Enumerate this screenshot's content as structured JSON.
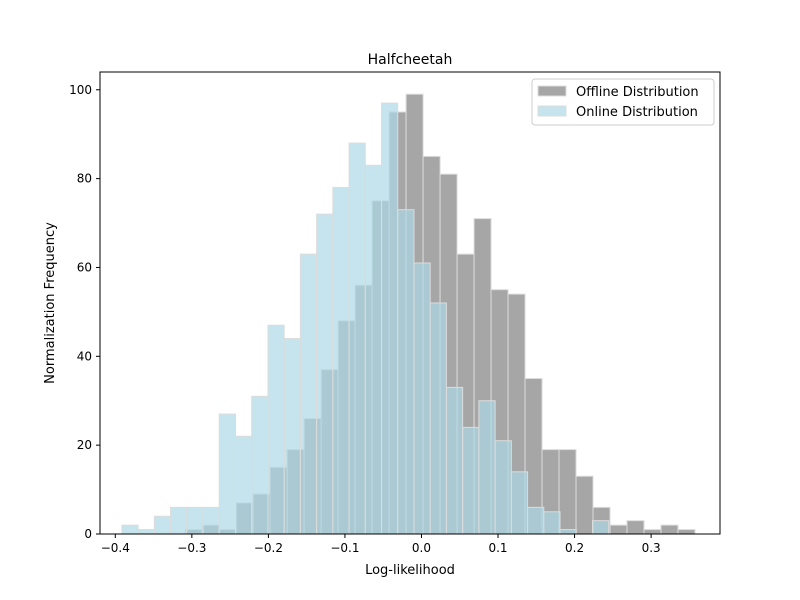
{
  "chart_data": {
    "type": "bar",
    "title": "Halfcheetah",
    "xlabel": "Log-likelihood",
    "ylabel": "Normalization Frequency",
    "xlim": [
      -0.42,
      0.39
    ],
    "ylim": [
      0,
      104
    ],
    "xticks": [
      -0.4,
      -0.3,
      -0.2,
      -0.1,
      0.0,
      0.1,
      0.2,
      0.3
    ],
    "xtick_labels": [
      "−0.4",
      "−0.3",
      "−0.2",
      "−0.1",
      "0.0",
      "0.1",
      "0.2",
      "0.3"
    ],
    "yticks": [
      0,
      20,
      40,
      60,
      80,
      100
    ],
    "ytick_labels": [
      "0",
      "20",
      "40",
      "60",
      "80",
      "100"
    ],
    "grid": false,
    "legend_position": "top-right",
    "series": [
      {
        "name": "Offline Distribution",
        "color": "#808080",
        "opacity": 0.7,
        "bin_start": -0.3087,
        "bin_width": 0.0222,
        "values": [
          1,
          2,
          1,
          7,
          9,
          15,
          19,
          26,
          37,
          48,
          56,
          75,
          95,
          99,
          85,
          81,
          63,
          71,
          55,
          54,
          35,
          19,
          19,
          13,
          6,
          2,
          3,
          1,
          2,
          1
        ]
      },
      {
        "name": "Online Distribution",
        "color": "#add8e6",
        "opacity": 0.7,
        "bin_start": -0.3914,
        "bin_width": 0.0212,
        "values": [
          2,
          1,
          4,
          6,
          6,
          6,
          27,
          22,
          31,
          47,
          44,
          63,
          72,
          78,
          88,
          83,
          97,
          73,
          61,
          52,
          33,
          24,
          30,
          21,
          14,
          6,
          5,
          1,
          0,
          3
        ]
      }
    ]
  }
}
